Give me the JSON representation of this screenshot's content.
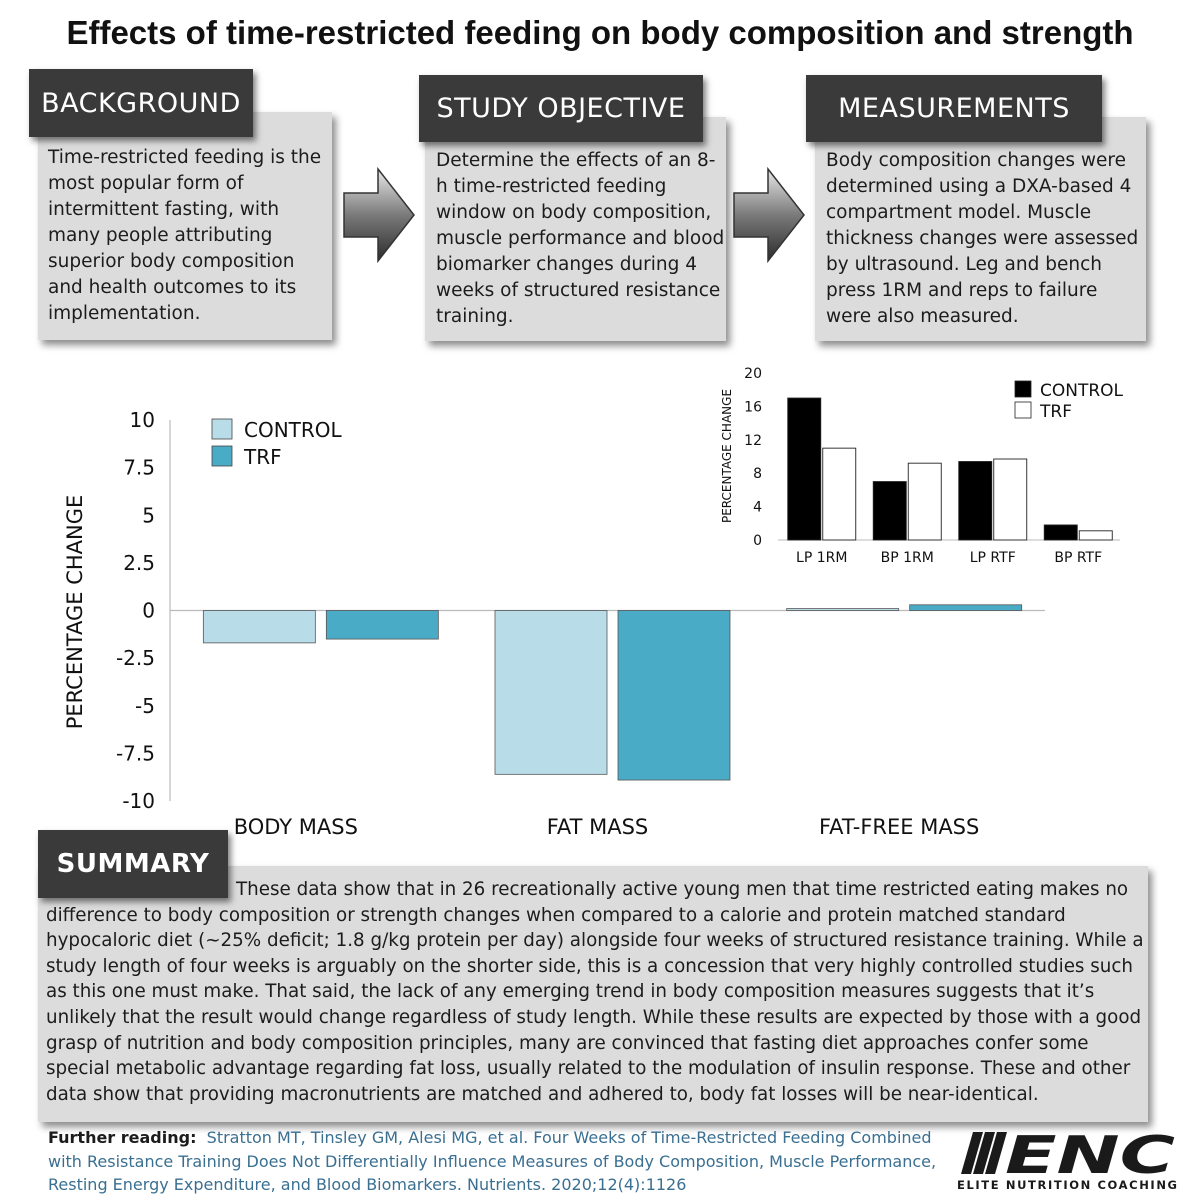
{
  "title": "Effects of time-restricted feeding on body composition and strength",
  "background": {
    "label": "BACKGROUND",
    "text": "Time-restricted feeding is the most popular form of intermittent fasting, with many people attributing superior body composition and health outcomes to its implementation."
  },
  "objective": {
    "label": "STUDY OBJECTIVE",
    "text": "Determine the effects of an 8-h time-restricted feeding window on body composition, muscle performance and blood biomarker changes during 4 weeks of structured resistance training."
  },
  "measurements": {
    "label": "MEASUREMENTS",
    "text": "Body composition changes were determined using a DXA-based 4 compartment model. Muscle thickness changes were assessed by ultrasound. Leg and bench press 1RM and reps to failure were also measured."
  },
  "summary": {
    "label": "SUMMARY",
    "text": "These data show that in 26 recreationally active young men that time restricted eating makes no difference to body composition or strength changes when compared to a calorie and protein matched standard hypocaloric diet (~25% deficit; 1.8 g/kg protein per day) alongside four weeks of structured resistance training. While a study length of four weeks is arguably on the shorter side, this is a concession that very highly controlled studies such as this one must make. That said, the lack of any emerging trend in body composition measures suggests that it’s unlikely that the result would change regardless of study length. While these results are expected by those with a good grasp of nutrition and body composition principles, many are convinced that fasting diet approaches confer some special metabolic advantage regarding fat loss, usually related to the modulation of insulin response. These and other data show that providing macronutrients are matched and adhered to, body fat losses will be near-identical."
  },
  "further_reading": {
    "label": "Further reading:",
    "text": "Stratton MT, Tinsley GM, Alesi MG, et al. Four Weeks of Time-Restricted Feeding Combined with Resistance Training Does Not Differentially Influence Measures of Body Composition, Muscle Performance, Resting Energy Expenditure, and Blood Biomarkers. Nutrients. 2020;12(4):1126"
  },
  "logo": {
    "brand": "ENC",
    "tagline": "ELITE NUTRITION COACHING"
  },
  "colors": {
    "control_main": "#b9dde8",
    "trf_main": "#4aabc6",
    "control_inset": "#000000",
    "trf_inset": "#ffffff",
    "panel": "#dcdcdc",
    "label_box": "#3a3a3a",
    "link": "#3a6f91"
  },
  "chart_data": [
    {
      "type": "bar",
      "title": "",
      "ylabel": "PERCENTAGE CHANGE",
      "xlabel": "",
      "categories": [
        "BODY MASS",
        "FAT MASS",
        "FAT-FREE MASS"
      ],
      "ylim": [
        -10,
        10
      ],
      "yticks": [
        "10",
        "7.5",
        "5",
        "2.5",
        "0",
        "-2.5",
        "-5",
        "-7.5",
        "-10"
      ],
      "ytick_values": [
        10,
        7.5,
        5,
        2.5,
        0,
        -2.5,
        -5,
        -7.5,
        -10
      ],
      "legend_position": "top-left",
      "series": [
        {
          "name": "CONTROL",
          "values": [
            -1.7,
            -8.6,
            0.1
          ]
        },
        {
          "name": "TRF",
          "values": [
            -1.5,
            -8.9,
            0.3
          ]
        }
      ]
    },
    {
      "type": "bar",
      "title": "",
      "ylabel": "PERCENTAGE CHANGE",
      "xlabel": "",
      "categories": [
        "LP 1RM",
        "BP 1RM",
        "LP RTF",
        "BP RTF"
      ],
      "ylim": [
        0,
        20
      ],
      "yticks": [
        "20",
        "16",
        "12",
        "8",
        "4",
        "0"
      ],
      "ytick_values": [
        20,
        16,
        12,
        8,
        4,
        0
      ],
      "legend_position": "top-right",
      "series": [
        {
          "name": "CONTROL",
          "values": [
            17,
            7,
            9.4,
            1.8
          ]
        },
        {
          "name": "TRF",
          "values": [
            11,
            9.2,
            9.7,
            1.1
          ]
        }
      ]
    }
  ]
}
